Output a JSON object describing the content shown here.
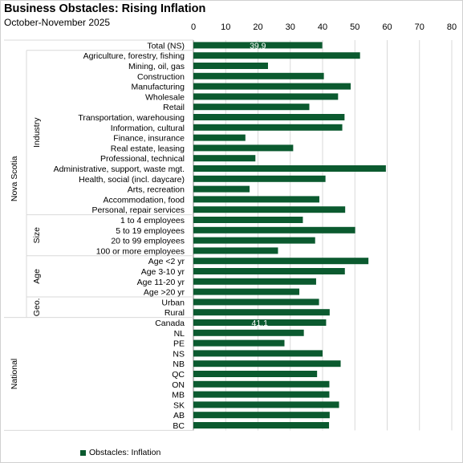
{
  "title": "Business Obstacles: Rising Inflation",
  "subtitle": "October-November 2025",
  "colors": {
    "bar": "#0b5a2f",
    "grid": "#d9d9d9",
    "axis": "#7f7f7f"
  },
  "chart_data": {
    "type": "bar",
    "orientation": "horizontal",
    "xlim": [
      0,
      80
    ],
    "xticks": [
      0,
      10,
      20,
      30,
      40,
      50,
      60,
      70,
      80
    ],
    "legend": {
      "label": "Obstacles: Inflation",
      "position": "bottom-left"
    },
    "groups": [
      {
        "label": "Nova Scotia",
        "level": "outer",
        "start": 0,
        "end": 26
      },
      {
        "label": "Industry",
        "level": "inner",
        "start": 1,
        "end": 16
      },
      {
        "label": "Size",
        "level": "inner",
        "start": 17,
        "end": 20
      },
      {
        "label": "Age",
        "level": "inner",
        "start": 21,
        "end": 24
      },
      {
        "label": "Geo.",
        "level": "inner",
        "start": 25,
        "end": 26
      },
      {
        "label": "National",
        "level": "outer",
        "start": 27,
        "end": 37
      }
    ],
    "categories": [
      "Total (NS)",
      "Agriculture, forestry, fishing",
      "Mining, oil, gas",
      "Construction",
      "Manufacturing",
      "Wholesale",
      "Retail",
      "Transportation, warehousing",
      "Information, cultural",
      "Finance, insurance",
      "Real estate, leasing",
      "Professional, technical",
      "Administrative, support, waste mgt.",
      "Health, social (incl. daycare)",
      "Arts, recreation",
      "Accommodation, food",
      "Personal, repair services",
      "1 to 4 employees",
      "5 to 19 employees",
      "20 to 99 employees",
      "100 or more employees",
      "Age <2 yr",
      "Age 3-10 yr",
      "Age 11-20 yr",
      "Age >20 yr",
      "Urban",
      "Rural",
      "Canada",
      "NL",
      "PE",
      "NS",
      "NB",
      "QC",
      "ON",
      "MB",
      "SK",
      "AB",
      "BC"
    ],
    "values": [
      39.9,
      51.6,
      23.1,
      40.4,
      48.7,
      44.8,
      35.9,
      46.8,
      46.1,
      16.1,
      30.9,
      19.2,
      59.6,
      40.9,
      17.4,
      39.0,
      47.0,
      33.9,
      50.1,
      37.7,
      26.2,
      54.2,
      46.9,
      38.0,
      32.8,
      38.9,
      42.2,
      41.1,
      34.2,
      28.2,
      40.0,
      45.6,
      38.3,
      42.1,
      42.1,
      45.1,
      42.2,
      42.0
    ],
    "data_labels": [
      {
        "index": 0,
        "text": "39.9"
      },
      {
        "index": 27,
        "text": "41.1"
      }
    ]
  }
}
